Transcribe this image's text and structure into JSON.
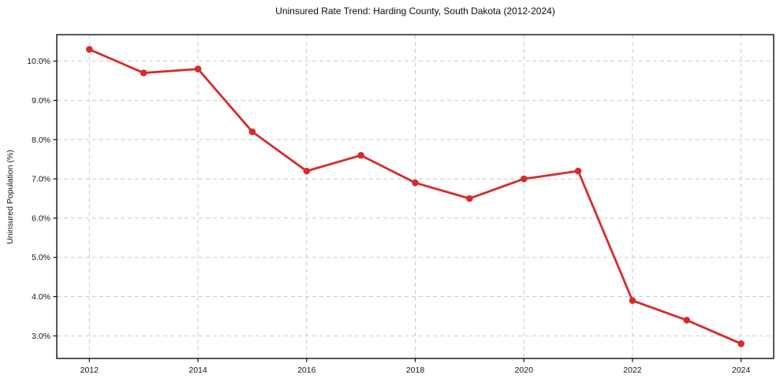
{
  "chart_data": {
    "type": "line",
    "title": "Uninsured Rate Trend: Harding County, South Dakota (2012-2024)",
    "xlabel": "",
    "ylabel": "Uninsured Population (%)",
    "x": [
      2012,
      2013,
      2014,
      2015,
      2016,
      2017,
      2018,
      2019,
      2020,
      2021,
      2022,
      2023,
      2024
    ],
    "values": [
      10.3,
      9.7,
      9.8,
      8.2,
      7.2,
      7.6,
      6.9,
      6.5,
      7.0,
      7.2,
      3.9,
      3.4,
      2.8
    ],
    "xlim": [
      2011.4,
      2024.6
    ],
    "ylim": [
      2.425,
      10.675
    ],
    "xticks": [
      2012,
      2014,
      2016,
      2018,
      2020,
      2022,
      2024
    ],
    "yticks": [
      10,
      9,
      8,
      7,
      6,
      5,
      4,
      3
    ],
    "ytick_decimals": 1,
    "ytick_suffix": "%",
    "grid": true,
    "grid_style": "dashed",
    "legend": false,
    "colors": {
      "line": "#d62c2c",
      "marker": "#d62c2c",
      "grid": "#cbcbcb",
      "spine": "#0f0f0f",
      "tick_text": "#141414",
      "background": "#ffffff"
    }
  }
}
